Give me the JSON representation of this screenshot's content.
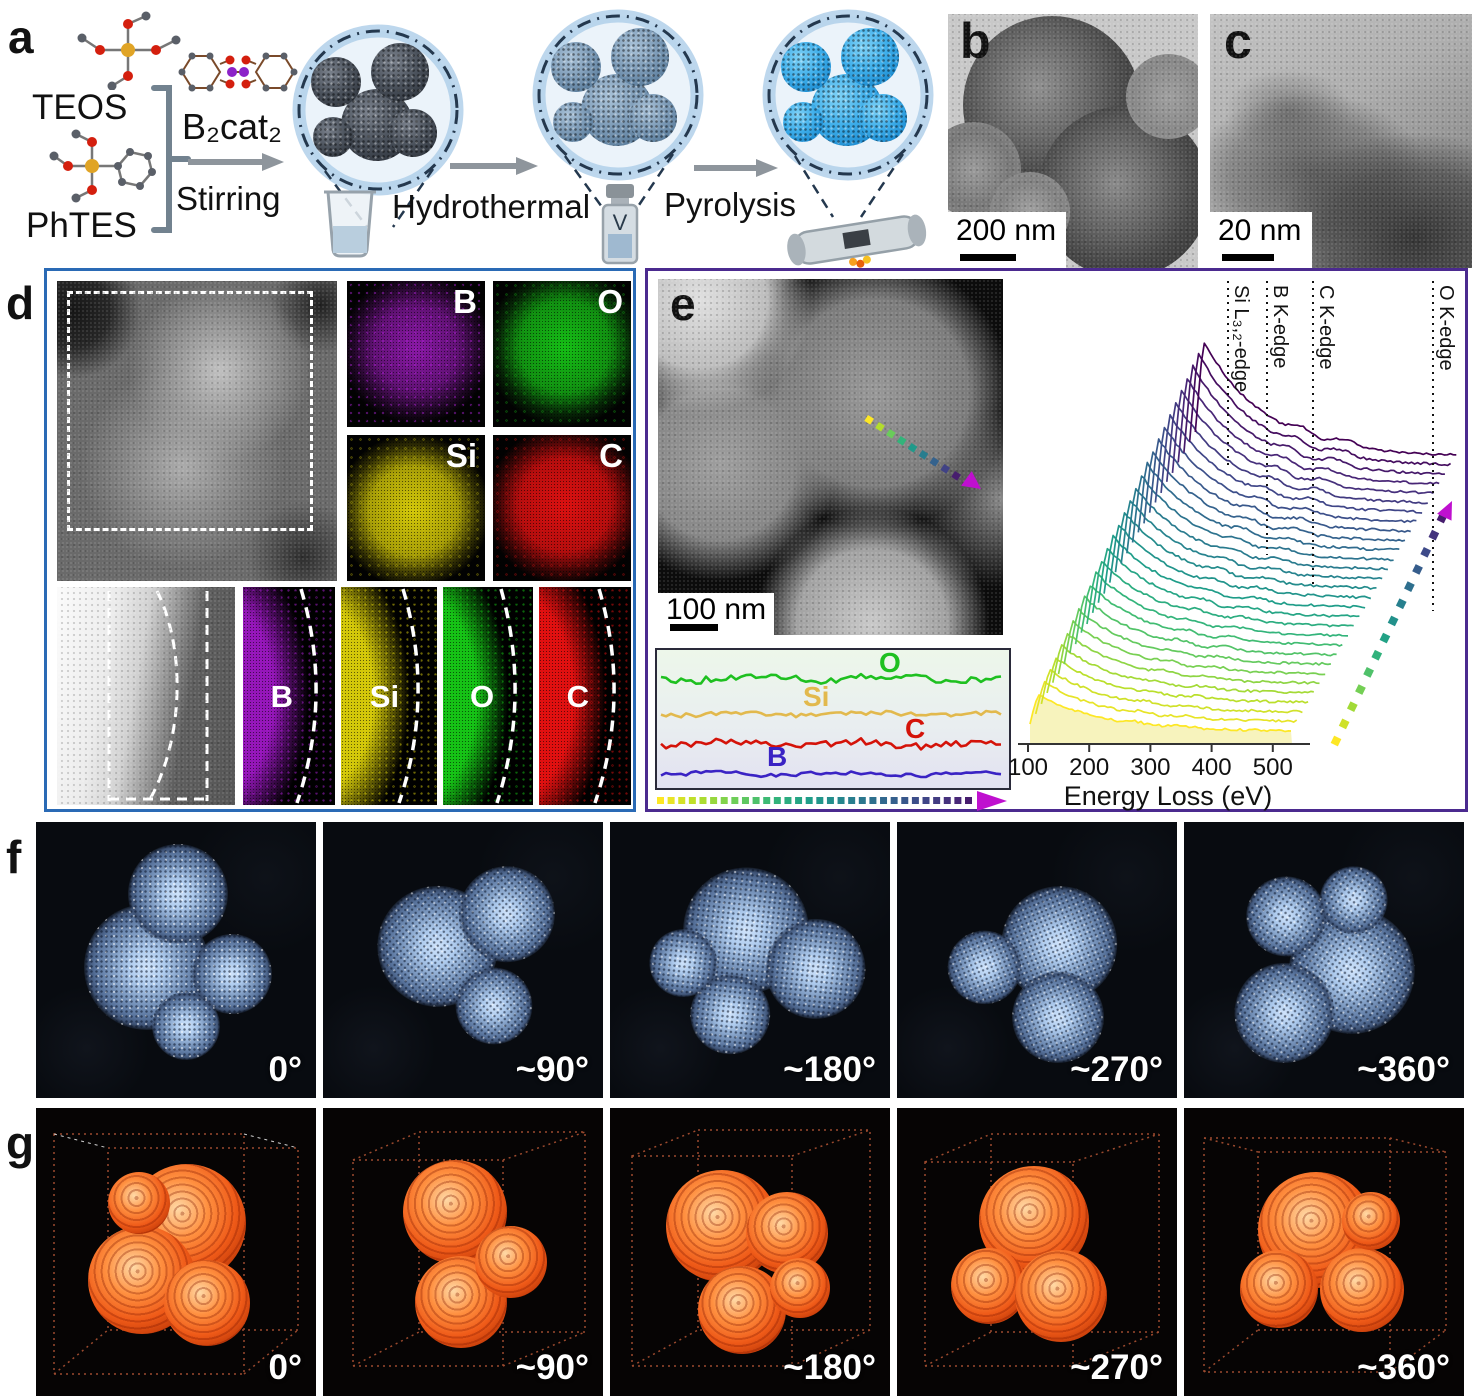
{
  "panels": {
    "a": {
      "label": "a",
      "reagent_top": "TEOS",
      "reagent_bottom": "PhTES",
      "added_reagent": "B₂cat₂",
      "step1": "Stirring",
      "step2": "Hydrothermal",
      "step3": "Pyrolysis"
    },
    "b": {
      "label": "b",
      "scale_bar": "200 nm"
    },
    "c": {
      "label": "c",
      "scale_bar": "20 nm"
    },
    "d": {
      "label": "d",
      "top_maps": [
        {
          "element": "B",
          "color": "#b01fd4"
        },
        {
          "element": "O",
          "color": "#16c816"
        },
        {
          "element": "Si",
          "color": "#ded20a"
        },
        {
          "element": "C",
          "color": "#e71111"
        }
      ],
      "bottom_maps": [
        {
          "element": "B",
          "color": "#a519cd"
        },
        {
          "element": "Si",
          "color": "#ded20a"
        },
        {
          "element": "O",
          "color": "#16c816"
        },
        {
          "element": "C",
          "color": "#e71111"
        }
      ]
    },
    "e": {
      "label": "e",
      "scale_bar": "100 nm"
    },
    "f": {
      "label": "f",
      "angles": [
        "0°",
        "~90°",
        "~180°",
        "~270°",
        "~360°"
      ]
    },
    "g": {
      "label": "g",
      "angles": [
        "0°",
        "~90°",
        "~180°",
        "~270°",
        "~360°"
      ]
    }
  },
  "chart_data": [
    {
      "id": "eels_waterfall",
      "type": "line",
      "title": "",
      "xlabel": "Energy Loss (eV)",
      "xticks": [
        100,
        200,
        300,
        400,
        500
      ],
      "x_range_eV": [
        60,
        580
      ],
      "n_spectra": 30,
      "grid": false,
      "legend": "none",
      "colormap_viridis": [
        "#fde725",
        "#b5de2b",
        "#6ece58",
        "#35b779",
        "#1f9e89",
        "#26828e",
        "#31688e",
        "#3e4a89",
        "#482878",
        "#440154"
      ],
      "edges": [
        {
          "label": "Si L₃,₂-edge"
        },
        {
          "label": "B K-edge"
        },
        {
          "label": "C K-edge"
        },
        {
          "label": "O K-edge"
        }
      ],
      "arrow": {
        "style": "dashed-gradient",
        "direction": "up-right",
        "head_color": "#bf10cf"
      },
      "description": "Waterfall of ~30 EEL spectra taken along the scan arrow; each successive spectrum offset up-right; intensity decays with energy loss showing Si, B, C and O absorption edges; color goes yellow (first) to purple (last)."
    },
    {
      "id": "eels_linescan",
      "type": "line",
      "series": [
        {
          "name": "O",
          "color": "#1ec020"
        },
        {
          "name": "Si",
          "color": "#e2b94d"
        },
        {
          "name": "C",
          "color": "#d41309"
        },
        {
          "name": "B",
          "color": "#3a23c4"
        }
      ],
      "description": "Relative elemental EELS intensity along the line scan; four roughly constant noisy traces ordered O (top), Si, C, B (bottom)."
    }
  ]
}
